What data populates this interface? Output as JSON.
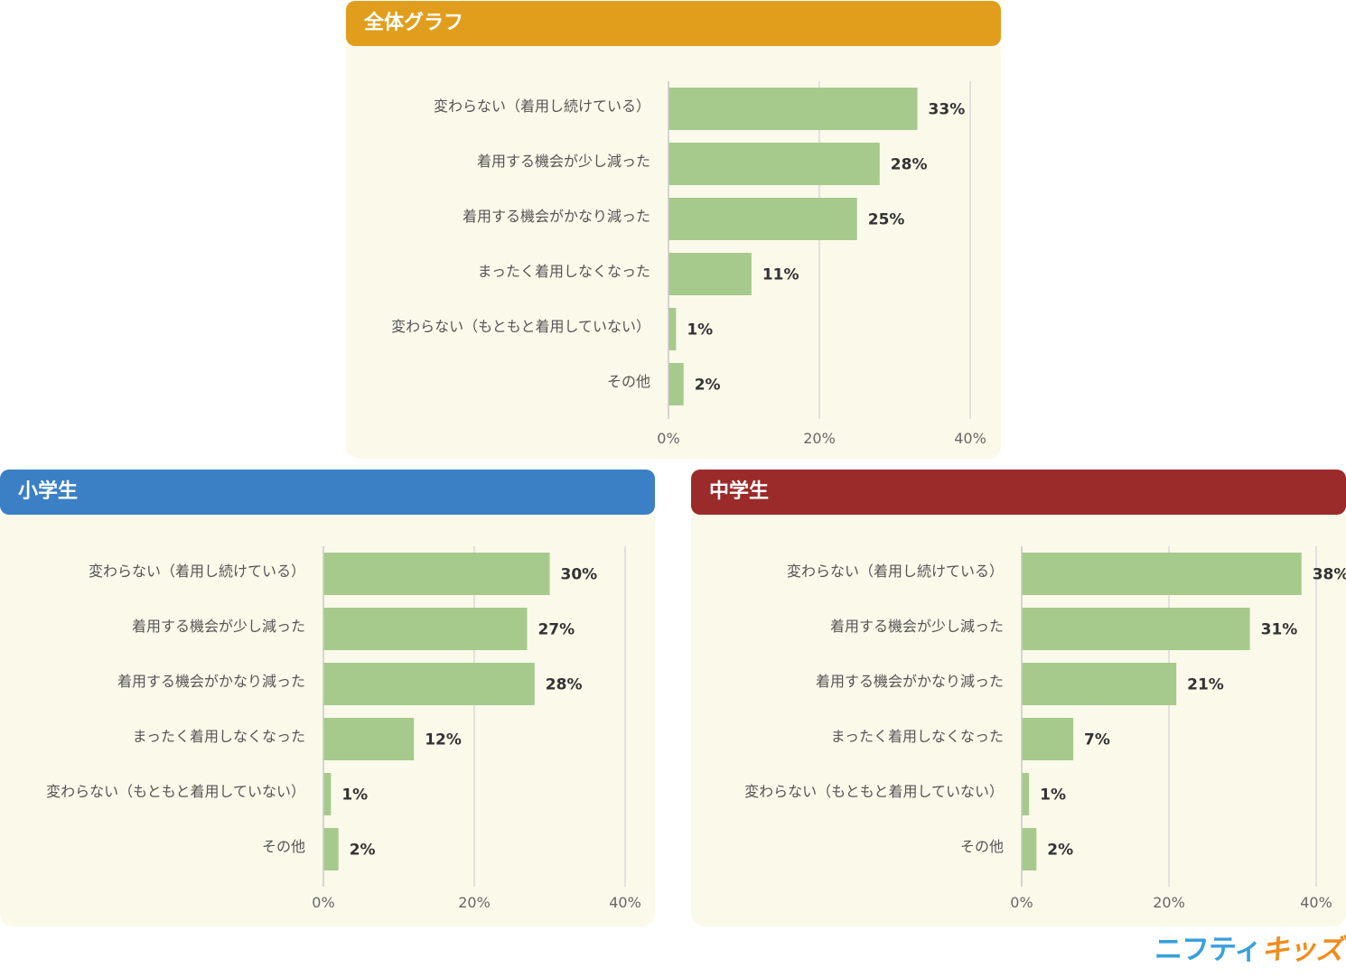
{
  "colors": {
    "bar": "#a6ca8c",
    "panel_background": "#fbf9ea",
    "grid": "#d9d9d9",
    "axis": "#c8c8c8"
  },
  "panels": [
    {
      "id": "overall",
      "title": "全体グラフ",
      "header_color": "#e09e1c"
    },
    {
      "id": "elementary",
      "title": "小学生",
      "header_color": "#3b80c4"
    },
    {
      "id": "junior",
      "title": "中学生",
      "header_color": "#9b2b2b"
    }
  ],
  "logo": {
    "part1": "ニフティ",
    "part2": "キッズ",
    "color1": "#3aa0dd",
    "color2": "#f08c1e"
  },
  "chart_data": [
    {
      "type": "bar",
      "orientation": "horizontal",
      "title": "全体グラフ",
      "categories": [
        "変わらない（着用し続けている）",
        "着用する機会が少し減った",
        "着用する機会がかなり減った",
        "まったく着用しなくなった",
        "変わらない（もともと着用していない）",
        "その他"
      ],
      "values": [
        33,
        28,
        25,
        11,
        1,
        2
      ],
      "value_labels": [
        "33%",
        "28%",
        "25%",
        "11%",
        "1%",
        "2%"
      ],
      "xlim": [
        0,
        40
      ],
      "ticks": [
        0,
        20,
        40
      ],
      "tick_labels": [
        "0%",
        "20%",
        "40%"
      ],
      "grid": true
    },
    {
      "type": "bar",
      "orientation": "horizontal",
      "title": "小学生",
      "categories": [
        "変わらない（着用し続けている）",
        "着用する機会が少し減った",
        "着用する機会がかなり減った",
        "まったく着用しなくなった",
        "変わらない（もともと着用していない）",
        "その他"
      ],
      "values": [
        30,
        27,
        28,
        12,
        1,
        2
      ],
      "value_labels": [
        "30%",
        "27%",
        "28%",
        "12%",
        "1%",
        "2%"
      ],
      "xlim": [
        0,
        40
      ],
      "ticks": [
        0,
        20,
        40
      ],
      "tick_labels": [
        "0%",
        "20%",
        "40%"
      ],
      "grid": true
    },
    {
      "type": "bar",
      "orientation": "horizontal",
      "title": "中学生",
      "categories": [
        "変わらない（着用し続けている）",
        "着用する機会が少し減った",
        "着用する機会がかなり減った",
        "まったく着用しなくなった",
        "変わらない（もともと着用していない）",
        "その他"
      ],
      "values": [
        38,
        31,
        21,
        7,
        1,
        2
      ],
      "value_labels": [
        "38%",
        "31%",
        "21%",
        "7%",
        "1%",
        "2%"
      ],
      "xlim": [
        0,
        40
      ],
      "ticks": [
        0,
        20,
        40
      ],
      "tick_labels": [
        "0%",
        "20%",
        "40%"
      ],
      "grid": true
    }
  ]
}
